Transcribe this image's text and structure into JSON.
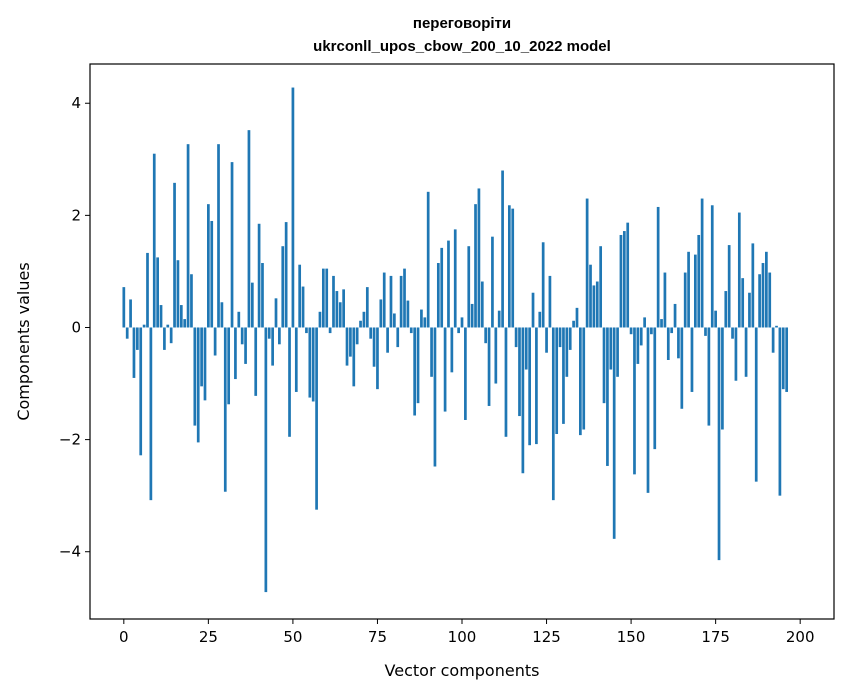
{
  "chart_data": {
    "type": "bar",
    "title_line1": "переговоріти",
    "title_line2": "ukrconll_upos_cbow_200_10_2022 model",
    "xlabel": "Vector components",
    "ylabel": "Components values",
    "xlim": [
      -10,
      210
    ],
    "ylim": [
      -5.2,
      4.7
    ],
    "xticks": [
      0,
      25,
      50,
      75,
      100,
      125,
      150,
      175,
      200
    ],
    "xtick_labels": [
      "0",
      "25",
      "50",
      "75",
      "100",
      "125",
      "150",
      "175",
      "200"
    ],
    "yticks": [
      -4,
      -2,
      0,
      2,
      4
    ],
    "ytick_labels": [
      "−4",
      "−2",
      "0",
      "2",
      "4"
    ],
    "grid": false,
    "bar_color": "#1f77b4",
    "values": [
      0.72,
      -0.2,
      0.5,
      -0.9,
      -0.4,
      -2.28,
      0.05,
      1.33,
      -3.08,
      3.1,
      1.25,
      0.4,
      -0.4,
      0.05,
      -0.28,
      2.58,
      1.2,
      0.4,
      0.15,
      3.27,
      0.95,
      -1.75,
      -2.05,
      -1.05,
      -1.3,
      2.2,
      1.9,
      -0.5,
      3.27,
      0.45,
      -2.93,
      -1.37,
      2.95,
      -0.92,
      0.28,
      -0.3,
      -0.65,
      3.52,
      0.8,
      -1.22,
      1.85,
      1.15,
      -4.72,
      -0.2,
      -0.68,
      0.52,
      -0.3,
      1.45,
      1.88,
      -1.95,
      4.28,
      -1.15,
      1.12,
      0.73,
      -0.1,
      -1.25,
      -1.32,
      -3.25,
      0.28,
      1.05,
      1.05,
      -0.1,
      0.92,
      0.65,
      0.45,
      0.68,
      -0.68,
      -0.52,
      -1.05,
      -0.3,
      0.12,
      0.28,
      0.72,
      -0.2,
      -0.7,
      -1.1,
      0.5,
      0.98,
      -0.45,
      0.92,
      0.25,
      -0.35,
      0.92,
      1.05,
      0.48,
      -0.1,
      -1.57,
      -1.35,
      0.32,
      0.18,
      2.42,
      -0.88,
      -2.48,
      1.15,
      1.42,
      -1.5,
      1.55,
      -0.8,
      1.75,
      -0.1,
      0.18,
      -1.65,
      1.45,
      0.42,
      2.2,
      2.48,
      0.82,
      -0.28,
      -1.4,
      1.62,
      -1.0,
      0.3,
      2.8,
      -1.95,
      2.18,
      2.12,
      -0.35,
      -1.58,
      -2.6,
      -0.75,
      -2.1,
      0.62,
      -2.08,
      0.28,
      1.52,
      -0.45,
      0.92,
      -3.08,
      -1.9,
      -0.35,
      -1.72,
      -0.88,
      -0.4,
      0.12,
      0.35,
      -1.92,
      -1.82,
      2.3,
      1.12,
      0.75,
      0.82,
      1.45,
      -1.35,
      -2.47,
      -0.75,
      -3.77,
      -0.88,
      1.65,
      1.72,
      1.87,
      -0.12,
      -2.62,
      -0.65,
      -0.32,
      0.18,
      -2.95,
      -0.12,
      -2.17,
      2.15,
      0.15,
      0.98,
      -0.58,
      -0.1,
      0.42,
      -0.55,
      -1.45,
      0.98,
      1.35,
      -1.15,
      1.3,
      1.65,
      2.3,
      -0.15,
      -1.75,
      2.18,
      0.3,
      -4.15,
      -1.82,
      0.65,
      1.47,
      -0.2,
      -0.95,
      2.05,
      0.88,
      -0.88,
      0.62,
      1.5,
      -2.75,
      0.95,
      1.15,
      1.35,
      0.98,
      -0.45,
      0.03,
      -3.0,
      -1.1,
      -1.15
    ]
  }
}
